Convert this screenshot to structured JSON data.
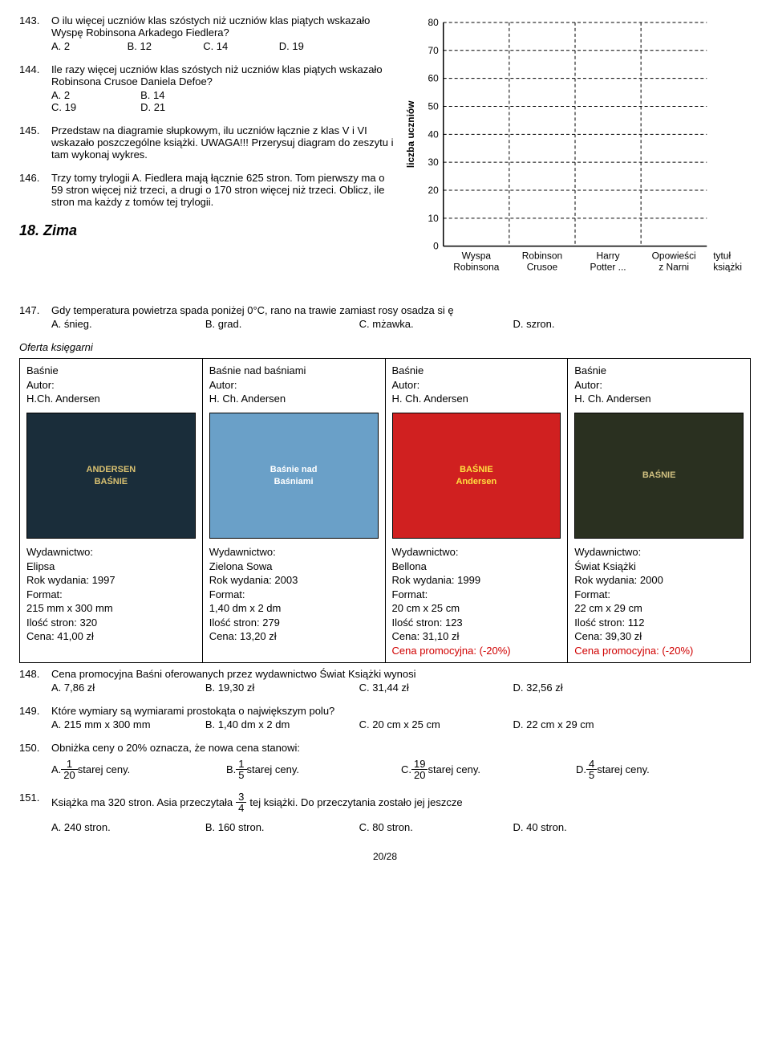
{
  "q143": {
    "num": "143.",
    "text": "O ilu więcej uczniów klas szóstych niż uczniów klas piątych wskazało Wyspę Robinsona Arkadego Fiedlera?",
    "opts": {
      "a": "A. 2",
      "b": "B. 12",
      "c": "C. 14",
      "d": "D. 19"
    }
  },
  "q144": {
    "num": "144.",
    "text": "Ile razy więcej uczniów klas szóstych niż uczniów klas piątych wskazało Robinsona Crusoe Daniela Defoe?",
    "opts": {
      "a": "A. 2",
      "b": "B. 14",
      "c": "C. 19",
      "d": "D. 21"
    }
  },
  "q145": {
    "num": "145.",
    "text": "Przedstaw na diagramie słupkowym, ilu uczniów łącznie z klas V i VI wskazało poszczególne książki. UWAGA!!! Przerysuj diagram do zeszytu i tam wykonaj wykres."
  },
  "q146": {
    "num": "146.",
    "text": "Trzy tomy trylogii A. Fiedlera mają łącznie 625 stron. Tom pierwszy ma o 59 stron więcej niż trzeci, a drugi o 170 stron więcej niż trzeci. Oblicz, ile stron ma każdy z tomów tej trylogii."
  },
  "section18": "18.  Zima",
  "q147": {
    "num": "147.",
    "text": "Gdy temperatura powietrza spada poniżej 0°C, rano na trawie zamiast rosy osadza si ę",
    "opts": {
      "a": "A. śnieg.",
      "b": "B. grad.",
      "c": "C. mżawka.",
      "d": "D. szron."
    }
  },
  "oferta_title": "Oferta księgarni",
  "chart": {
    "y_label": "liczba uczniów",
    "y_ticks": [
      "0",
      "10",
      "20",
      "30",
      "40",
      "50",
      "60",
      "70",
      "80"
    ],
    "x_ticks": [
      {
        "l1": "Wyspa",
        "l2": "Robinsona"
      },
      {
        "l1": "Robinson",
        "l2": "Crusoe"
      },
      {
        "l1": "Harry",
        "l2": "Potter ..."
      },
      {
        "l1": "Opowieści",
        "l2": "z Narni"
      }
    ],
    "x_axis_label_1": "tytuł",
    "x_axis_label_2": "książki",
    "colors": {
      "grid": "#000",
      "axis": "#000",
      "text": "#000"
    }
  },
  "books": [
    {
      "title": "Baśnie",
      "author_lbl": "Autor:",
      "author": "H.Ch. Andersen",
      "cover": "ANDERSEN\nBAŚNIE",
      "cover_bg": "#1a2d3a",
      "cover_fg": "#d8c070",
      "pub_lbl": "Wydawnictwo:",
      "pub": "Elipsa",
      "year": "Rok wydania: 1997",
      "fmt_lbl": "Format:",
      "fmt": "215 mm x 300 mm",
      "pages": "Ilość stron: 320",
      "price": "Cena:   41,00 zł",
      "promo": ""
    },
    {
      "title": "Baśnie nad baśniami",
      "author_lbl": "Autor:",
      "author": "H. Ch. Andersen",
      "cover": "Baśnie nad\nBaśniami",
      "cover_bg": "#6aa0c8",
      "cover_fg": "#ffffff",
      "pub_lbl": "Wydawnictwo:",
      "pub": "Zielona Sowa",
      "year": "Rok wydania: 2003",
      "fmt_lbl": "Format:",
      "fmt": "1,40 dm x 2 dm",
      "pages": "Ilość stron: 279",
      "price": "Cena:   13,20 zł",
      "promo": ""
    },
    {
      "title": "Baśnie",
      "author_lbl": "Autor:",
      "author": "H. Ch. Andersen",
      "cover": "BAŚNIE\nAndersen",
      "cover_bg": "#d02020",
      "cover_fg": "#ffe040",
      "pub_lbl": "Wydawnictwo:",
      "pub": "Bellona",
      "year": "Rok wydania: 1999",
      "fmt_lbl": "Format:",
      "fmt": "20 cm x 25 cm",
      "pages": "Ilość stron: 123",
      "price": "Cena: 31,10 zł",
      "promo": "Cena promocyjna: (-20%)"
    },
    {
      "title": "Baśnie",
      "author_lbl": "Autor:",
      "author": "H. Ch. Andersen",
      "cover": "BAŚNIE",
      "cover_bg": "#2a3020",
      "cover_fg": "#d0c080",
      "pub_lbl": "Wydawnictwo:",
      "pub": "Świat Książki",
      "year": "Rok wydania: 2000",
      "fmt_lbl": "Format:",
      "fmt": "22 cm x 29 cm",
      "pages": "Ilość stron: 112",
      "price": "Cena: 39,30 zł",
      "promo": "Cena promocyjna: (-20%)"
    }
  ],
  "q148": {
    "num": "148.",
    "text": "Cena promocyjna Baśni oferowanych przez wydawnictwo Świat Książki wynosi",
    "opts": {
      "a": "A. 7,86 zł",
      "b": "B. 19,30 zł",
      "c": "C. 31,44 zł",
      "d": "D. 32,56 zł"
    }
  },
  "q149": {
    "num": "149.",
    "text": "Które wymiary są wymiarami prostokąta o największym polu?",
    "opts": {
      "a": "A. 215 mm x 300 mm",
      "b": "B. 1,40 dm x 2 dm",
      "c": "C. 20 cm x 25 cm",
      "d": "D. 22 cm x 29 cm"
    }
  },
  "q150": {
    "num": "150.",
    "text": "Obniżka ceny o 20% oznacza, że nowa cena stanowi:",
    "opts": {
      "a": {
        "pre": "A. ",
        "n": "1",
        "d": "20",
        "post": " starej ceny."
      },
      "b": {
        "pre": "B. ",
        "n": "1",
        "d": "5",
        "post": " starej ceny."
      },
      "c": {
        "pre": "C. ",
        "n": "19",
        "d": "20",
        "post": " starej ceny."
      },
      "d": {
        "pre": "D. ",
        "n": "4",
        "d": "5",
        "post": " starej ceny."
      }
    }
  },
  "q151": {
    "num": "151.",
    "pre": "Książka ma 320 stron. Asia przeczytała ",
    "frac": {
      "n": "3",
      "d": "4"
    },
    "post": " tej książki. Do przeczytania zostało jej jeszcze",
    "opts": {
      "a": "A. 240 stron.",
      "b": "B. 160 stron.",
      "c": "C. 80 stron.",
      "d": "D. 40 stron."
    }
  },
  "pagefoot": "20/28"
}
